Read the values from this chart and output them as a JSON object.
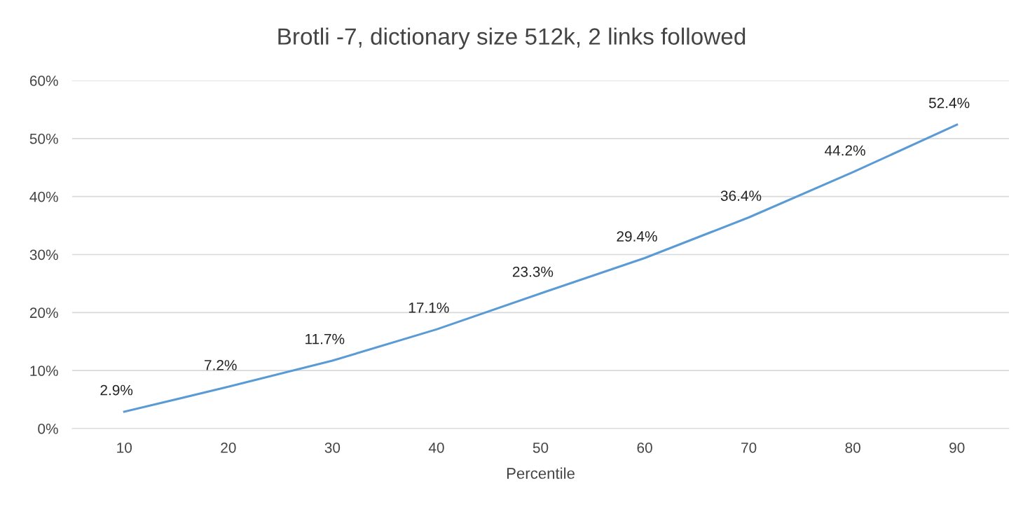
{
  "chart_data": {
    "type": "line",
    "title": "Brotli -7, dictionary size 512k, 2 links followed",
    "xlabel": "Percentile",
    "categories": [
      "10",
      "20",
      "30",
      "40",
      "50",
      "60",
      "70",
      "80",
      "90"
    ],
    "series": [
      {
        "color": "#5b9bd5",
        "values": [
          2.9,
          7.2,
          11.7,
          17.1,
          23.3,
          29.4,
          36.4,
          44.2,
          52.4
        ],
        "value_labels": [
          "2.9%",
          "7.2%",
          "11.7%",
          "17.1%",
          "23.3%",
          "29.4%",
          "36.4%",
          "44.2%",
          "52.4%"
        ]
      }
    ],
    "ylim": [
      0,
      60
    ],
    "yticks": [
      {
        "value": 0,
        "label": "0%"
      },
      {
        "value": 10,
        "label": "10%"
      },
      {
        "value": 20,
        "label": "20%"
      },
      {
        "value": 30,
        "label": "30%"
      },
      {
        "value": 40,
        "label": "40%"
      },
      {
        "value": 50,
        "label": "50%"
      },
      {
        "value": 60,
        "label": "60%"
      }
    ],
    "grid": "y",
    "marker": "none",
    "line_style": "solid"
  }
}
